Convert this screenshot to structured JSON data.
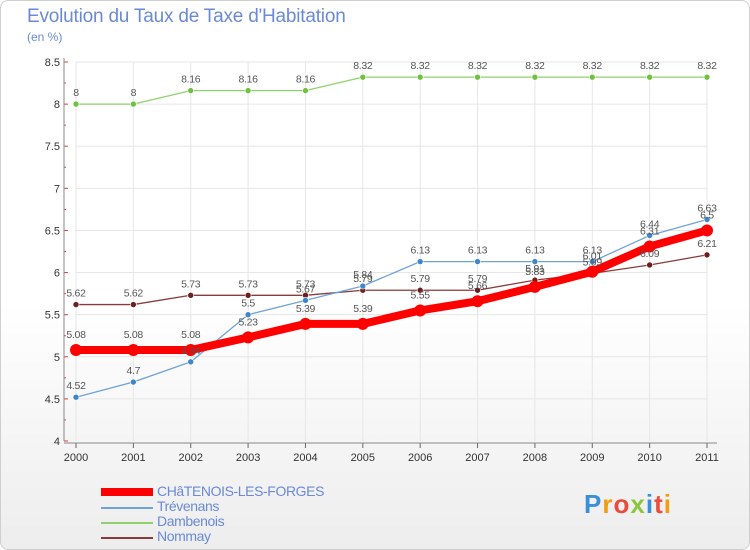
{
  "header": {
    "title": "Evolution du Taux de Taxe d'Habitation",
    "subtitle": "(en %)"
  },
  "chart_data": {
    "type": "line",
    "title": "Evolution du Taux de Taxe d'Habitation",
    "ylabel": "(en %)",
    "xlabel": "",
    "ylim": [
      4,
      8.5
    ],
    "yticks": [
      "4",
      "4.5",
      "5",
      "5.5",
      "6",
      "6.5",
      "7",
      "7.5",
      "8",
      "8.5"
    ],
    "x": [
      "2000",
      "2001",
      "2002",
      "2003",
      "2004",
      "2005",
      "2006",
      "2007",
      "2008",
      "2009",
      "2010",
      "2011"
    ],
    "series": [
      {
        "name": "Dambenois",
        "color": "#8fd16a",
        "marker": "#6fc23f",
        "width": 1.3,
        "r": 3,
        "values": [
          8,
          8,
          8.16,
          8.16,
          8.16,
          8.32,
          8.32,
          8.32,
          8.32,
          8.32,
          8.32,
          8.32
        ],
        "labels": [
          "8",
          "8",
          "8.16",
          "8.16",
          "8.16",
          "8.32",
          "8.32",
          "8.32",
          "8.32",
          "8.32",
          "8.32",
          "8.32"
        ]
      },
      {
        "name": "Nommay",
        "color": "#8a3a3a",
        "marker": "#6b1f1f",
        "width": 1.3,
        "r": 3,
        "values": [
          5.62,
          5.62,
          5.73,
          5.73,
          5.73,
          5.79,
          5.79,
          5.79,
          5.91,
          5.99,
          6.09,
          6.21
        ],
        "labels": [
          "5.62",
          "5.62",
          "5.73",
          "5.73",
          "5.73",
          "5.79",
          "5.79",
          "5.79",
          "5.91",
          "5.99",
          "6.09",
          "6.21"
        ]
      },
      {
        "name": "Trévenans",
        "color": "#6fa3d6",
        "marker": "#3d86cc",
        "width": 1.3,
        "r": 3,
        "values": [
          4.52,
          4.7,
          4.94,
          5.5,
          5.67,
          5.84,
          6.13,
          6.13,
          6.13,
          6.13,
          6.44,
          6.63
        ],
        "labels": [
          "4.52",
          "4.7",
          "4.94",
          "5.5",
          "5.67",
          "5.84",
          "6.13",
          "6.13",
          "6.13",
          "6.13",
          "6.44",
          "6.63"
        ]
      },
      {
        "name": "CHâTENOIS-LES-FORGES",
        "color": "#ff0000",
        "marker": "#ff0000",
        "width": 8,
        "r": 6,
        "values": [
          5.08,
          5.08,
          5.08,
          5.23,
          5.39,
          5.39,
          5.55,
          5.66,
          5.83,
          6.01,
          6.31,
          6.5
        ],
        "labels": [
          "5.08",
          "5.08",
          "5.08",
          "5.23",
          "5.39",
          "5.39",
          "5.55",
          "5.66",
          "5.83",
          "6.01",
          "6.31",
          "6.5"
        ]
      }
    ]
  },
  "legend": {
    "items": [
      {
        "label": "CHâTENOIS-LES-FORGES",
        "color": "#ff0000",
        "thick": true
      },
      {
        "label": "Trévenans",
        "color": "#6fa3d6",
        "thick": false
      },
      {
        "label": "Dambenois",
        "color": "#8fd16a",
        "thick": false
      },
      {
        "label": "Nommay",
        "color": "#8a3a3a",
        "thick": false
      }
    ]
  },
  "logo": {
    "letters": [
      "P",
      "r",
      "o",
      "x",
      "i",
      "t",
      "i"
    ],
    "colors": [
      "#3a8fd8",
      "#f39c12",
      "#e74c3c",
      "#8cc63f",
      "#3a8fd8",
      "#e74c3c",
      "#f39c12"
    ]
  }
}
